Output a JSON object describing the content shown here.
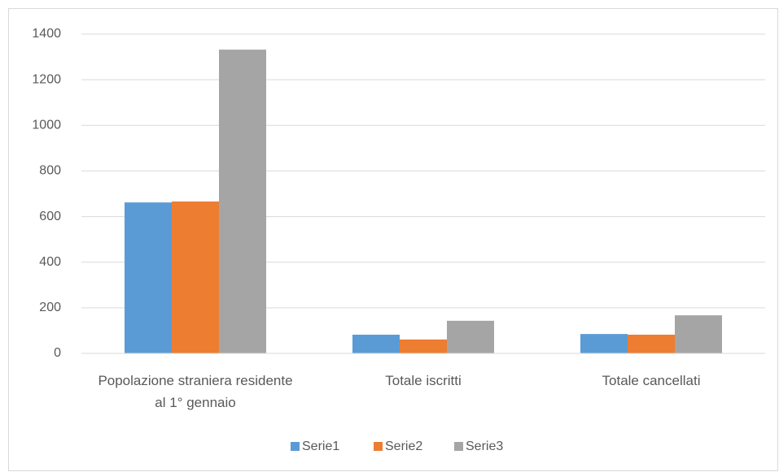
{
  "chart_data": {
    "type": "bar",
    "categories": [
      "Popolazione straniera residente al 1° gennaio",
      "Totale iscritti",
      "Totale cancellati"
    ],
    "series": [
      {
        "name": "Serie1",
        "color": "#5b9bd5",
        "values": [
          662,
          82,
          85
        ]
      },
      {
        "name": "Serie2",
        "color": "#ed7d31",
        "values": [
          666,
          61,
          82
        ]
      },
      {
        "name": "Serie3",
        "color": "#a5a5a5",
        "values": [
          1332,
          143,
          167
        ]
      }
    ],
    "ylim": [
      0,
      1400
    ],
    "yticks": [
      0,
      200,
      400,
      600,
      800,
      1000,
      1200,
      1400
    ],
    "grid": true,
    "legend": "bottom"
  }
}
